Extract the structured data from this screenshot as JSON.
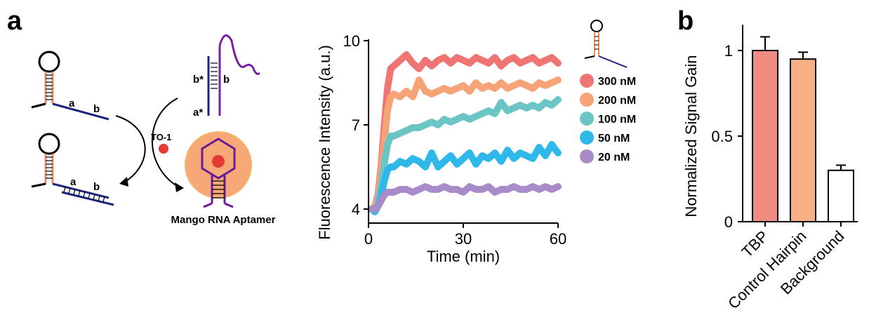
{
  "panels": {
    "a": "a",
    "b": "b"
  },
  "schematic": {
    "strand_label_a": "a",
    "strand_label_b": "b",
    "strand_label_a2": "a",
    "strand_label_b2": "b",
    "target_label_bstar": "b*",
    "target_label_astar": "a*",
    "target_label_b": "b",
    "dye_label": "TO-1",
    "aptamer_label": "Mango RNA Aptamer",
    "colors": {
      "stem": "#e8906a",
      "strand": "#1a237e",
      "target": "#7b1fa2",
      "dye": "#e53935",
      "halo": "#f6a876"
    }
  },
  "chart_data": [
    {
      "type": "scatter",
      "xlabel": "Time (min)",
      "ylabel": "Fluorescence Intensity (a.u.)",
      "xlim": [
        0,
        60
      ],
      "ylim": [
        3.5,
        10
      ],
      "xticks": [
        0,
        30,
        60
      ],
      "yticks": [
        4,
        7,
        10
      ],
      "legend_position": "right",
      "series": [
        {
          "name": "300 nM",
          "color": "#ef7474",
          "x": [
            1,
            2,
            3,
            4,
            5,
            6,
            7,
            8,
            10,
            12,
            14,
            16,
            18,
            20,
            22,
            24,
            26,
            28,
            30,
            32,
            34,
            36,
            38,
            40,
            42,
            44,
            46,
            48,
            50,
            52,
            54,
            56,
            58,
            60
          ],
          "y": [
            4.0,
            4.1,
            4.5,
            5.5,
            7.0,
            8.3,
            9.0,
            9.1,
            9.3,
            9.5,
            9.2,
            9.0,
            9.3,
            9.1,
            9.3,
            9.4,
            9.2,
            9.4,
            9.3,
            9.2,
            9.4,
            9.3,
            9.2,
            9.4,
            9.1,
            9.3,
            9.4,
            9.2,
            9.3,
            9.4,
            9.2,
            9.3,
            9.4,
            9.2
          ]
        },
        {
          "name": "200 nM",
          "color": "#f6a477",
          "x": [
            1,
            2,
            3,
            4,
            5,
            6,
            7,
            8,
            10,
            12,
            14,
            16,
            18,
            20,
            22,
            24,
            26,
            28,
            30,
            32,
            34,
            36,
            38,
            40,
            42,
            44,
            46,
            48,
            50,
            52,
            54,
            56,
            58,
            60
          ],
          "y": [
            4.0,
            4.1,
            4.4,
            5.2,
            6.4,
            7.5,
            8.0,
            8.1,
            8.0,
            8.2,
            8.0,
            8.6,
            8.2,
            8.1,
            8.2,
            8.3,
            8.2,
            8.3,
            8.4,
            8.2,
            8.5,
            8.3,
            8.4,
            8.3,
            8.5,
            8.3,
            8.4,
            8.5,
            8.4,
            8.3,
            8.5,
            8.4,
            8.5,
            8.6
          ]
        },
        {
          "name": "100 nM",
          "color": "#6cc5c5",
          "x": [
            1,
            2,
            3,
            4,
            5,
            6,
            7,
            8,
            10,
            12,
            14,
            16,
            18,
            20,
            22,
            24,
            26,
            28,
            30,
            32,
            34,
            36,
            38,
            40,
            42,
            44,
            46,
            48,
            50,
            52,
            54,
            56,
            58,
            60
          ],
          "y": [
            4.0,
            4.0,
            4.2,
            4.8,
            5.6,
            6.3,
            6.6,
            6.6,
            6.7,
            6.8,
            6.9,
            6.9,
            7.0,
            7.1,
            7.0,
            7.2,
            7.1,
            7.2,
            7.3,
            7.2,
            7.3,
            7.4,
            7.5,
            7.4,
            7.8,
            7.5,
            7.6,
            7.7,
            7.6,
            7.7,
            7.6,
            7.8,
            7.7,
            7.9
          ]
        },
        {
          "name": "50 nM",
          "color": "#2fb8ea",
          "x": [
            1,
            2,
            3,
            4,
            5,
            6,
            7,
            8,
            10,
            12,
            14,
            16,
            18,
            20,
            22,
            24,
            26,
            28,
            30,
            32,
            34,
            36,
            38,
            40,
            42,
            44,
            46,
            48,
            50,
            52,
            54,
            56,
            58,
            60
          ],
          "y": [
            4.0,
            3.9,
            4.1,
            4.5,
            5.0,
            5.4,
            5.5,
            5.5,
            5.7,
            5.6,
            5.8,
            5.7,
            5.5,
            6.0,
            5.5,
            5.7,
            5.9,
            5.6,
            5.8,
            6.0,
            5.6,
            5.9,
            5.8,
            6.0,
            5.7,
            6.1,
            5.8,
            6.0,
            5.9,
            5.8,
            6.2,
            5.9,
            6.3,
            6.0
          ]
        },
        {
          "name": "20 nM",
          "color": "#a98bc9",
          "x": [
            1,
            2,
            3,
            4,
            5,
            6,
            7,
            8,
            10,
            12,
            14,
            16,
            18,
            20,
            22,
            24,
            26,
            28,
            30,
            32,
            34,
            36,
            38,
            40,
            42,
            44,
            46,
            48,
            50,
            52,
            54,
            56,
            58,
            60
          ],
          "y": [
            4.0,
            4.0,
            4.1,
            4.3,
            4.5,
            4.6,
            4.6,
            4.6,
            4.7,
            4.7,
            4.6,
            4.7,
            4.8,
            4.7,
            4.7,
            4.8,
            4.7,
            4.7,
            4.6,
            4.8,
            4.7,
            4.7,
            4.8,
            4.6,
            4.7,
            4.7,
            4.8,
            4.7,
            4.7,
            4.8,
            4.7,
            4.8,
            4.7,
            4.8
          ]
        }
      ]
    },
    {
      "type": "bar",
      "ylabel": "Normalized Signal Gain",
      "ylim": [
        0,
        1.15
      ],
      "yticks": [
        0,
        0.5,
        1
      ],
      "ytick_labels": [
        "0",
        "0.5",
        "1"
      ],
      "categories": [
        "TBP",
        "Control Hairpin",
        "Background"
      ],
      "values": [
        1.0,
        0.95,
        0.3
      ],
      "errors": [
        0.08,
        0.04,
        0.03
      ],
      "colors": [
        "#f28b82",
        "#f7b086",
        "#ffffff"
      ]
    }
  ]
}
